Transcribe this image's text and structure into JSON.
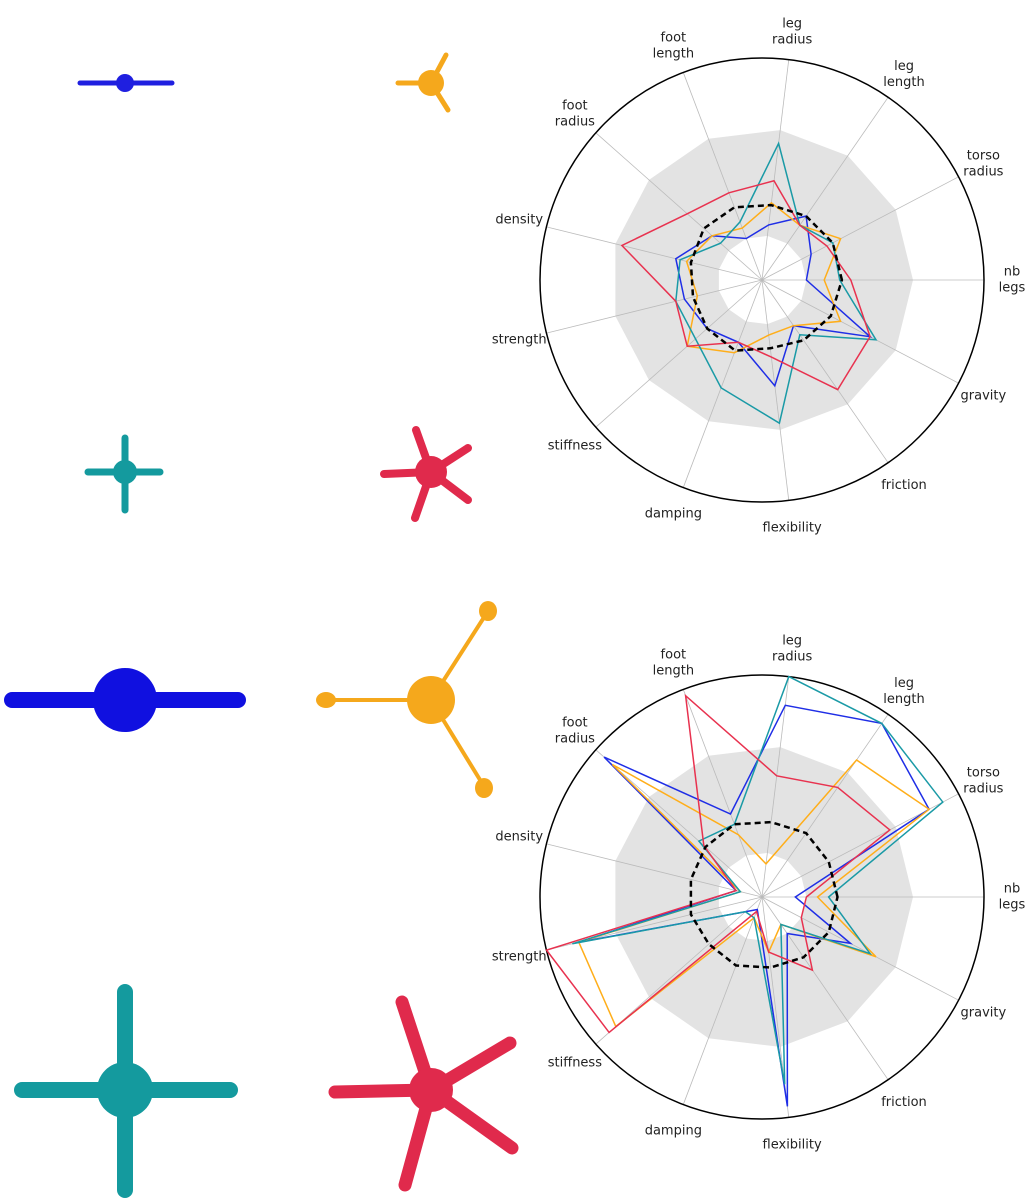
{
  "chart_data": [
    {
      "type": "radar",
      "categories": [
        [
          "nb",
          "legs"
        ],
        [
          "torso",
          "radius"
        ],
        [
          "leg",
          "length"
        ],
        [
          "leg",
          "radius"
        ],
        [
          "foot",
          "length"
        ],
        [
          "foot",
          "radius"
        ],
        [
          "density"
        ],
        [
          "strength"
        ],
        [
          "stiffness"
        ],
        [
          "damping"
        ],
        [
          "flexibility"
        ],
        [
          "friction"
        ],
        [
          "gravity"
        ]
      ],
      "rlim": [
        0,
        1
      ],
      "band": [
        0.2,
        0.68
      ],
      "band_color": "#e3e3e3",
      "reference": {
        "color": "#000000",
        "dashed": true,
        "values": [
          0.36,
          0.36,
          0.35,
          0.34,
          0.35,
          0.35,
          0.33,
          0.32,
          0.33,
          0.34,
          0.31,
          0.33,
          0.35
        ]
      },
      "series": [
        {
          "color": "#1f2ee6",
          "values": [
            0.2,
            0.25,
            0.35,
            0.25,
            0.2,
            0.3,
            0.4,
            0.36,
            0.33,
            0.3,
            0.48,
            0.25,
            0.55
          ]
        },
        {
          "color": "#ffae1a",
          "values": [
            0.28,
            0.4,
            0.3,
            0.35,
            0.25,
            0.3,
            0.35,
            0.3,
            0.45,
            0.35,
            0.25,
            0.25,
            0.4
          ]
        },
        {
          "color": "#1a9aa6",
          "values": [
            0.35,
            0.36,
            0.3,
            0.62,
            0.28,
            0.25,
            0.38,
            0.4,
            0.4,
            0.52,
            0.65,
            0.3,
            0.58
          ]
        },
        {
          "color": "#e8324f",
          "values": [
            0.4,
            0.33,
            0.3,
            0.45,
            0.42,
            0.45,
            0.65,
            0.4,
            0.45,
            0.3,
            0.35,
            0.6,
            0.55
          ]
        }
      ]
    },
    {
      "type": "radar",
      "categories": [
        [
          "nb",
          "legs"
        ],
        [
          "torso",
          "radius"
        ],
        [
          "leg",
          "length"
        ],
        [
          "leg",
          "radius"
        ],
        [
          "foot",
          "length"
        ],
        [
          "foot",
          "radius"
        ],
        [
          "density"
        ],
        [
          "strength"
        ],
        [
          "stiffness"
        ],
        [
          "damping"
        ],
        [
          "flexibility"
        ],
        [
          "friction"
        ],
        [
          "gravity"
        ]
      ],
      "rlim": [
        0,
        1
      ],
      "band": [
        0.2,
        0.68
      ],
      "band_color": "#e3e3e3",
      "reference": {
        "color": "#000000",
        "dashed": true,
        "values": [
          0.34,
          0.34,
          0.35,
          0.34,
          0.35,
          0.34,
          0.33,
          0.33,
          0.32,
          0.33,
          0.32,
          0.33,
          0.34
        ]
      },
      "series": [
        {
          "color": "#1f2ee6",
          "values": [
            0.15,
            0.85,
            0.95,
            0.87,
            0.4,
            0.95,
            0.12,
            0.85,
            0.1,
            0.06,
            0.95,
            0.2,
            0.45
          ]
        },
        {
          "color": "#ffae1a",
          "values": [
            0.25,
            0.85,
            0.75,
            0.15,
            0.3,
            0.9,
            0.1,
            0.85,
            0.88,
            0.1,
            0.25,
            0.15,
            0.58
          ]
        },
        {
          "color": "#1a9aa6",
          "values": [
            0.3,
            0.92,
            0.95,
            1.0,
            0.35,
            0.38,
            0.1,
            0.88,
            0.1,
            0.1,
            0.85,
            0.15,
            0.55
          ]
        },
        {
          "color": "#e8324f",
          "values": [
            0.2,
            0.65,
            0.6,
            0.55,
            0.97,
            0.35,
            0.12,
            1.0,
            0.92,
            0.07,
            0.25,
            0.4,
            0.2
          ]
        }
      ]
    }
  ]
}
